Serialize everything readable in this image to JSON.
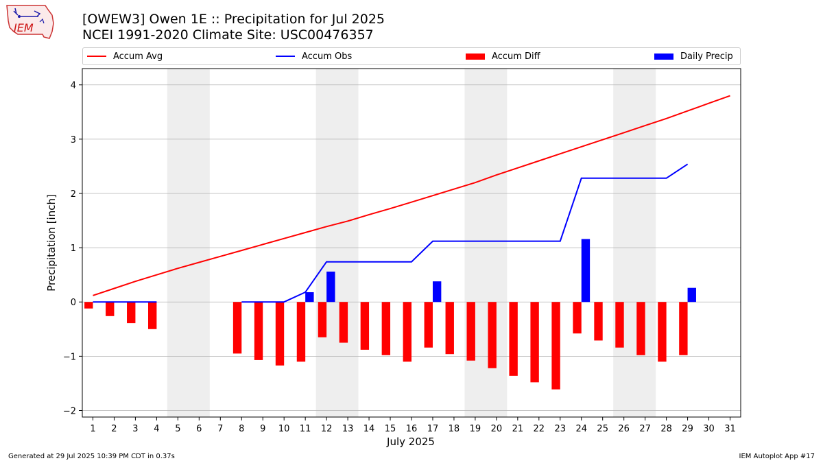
{
  "header": {
    "title": "[OWEW3] Owen 1E :: Precipitation for Jul 2025",
    "subtitle": "NCEI 1991-2020 Climate Site: USC00476357",
    "logo_text": "IEM"
  },
  "legend": {
    "accum_avg": "Accum Avg",
    "accum_obs": "Accum Obs",
    "accum_diff": "Accum Diff",
    "daily_precip": "Daily Precip",
    "placement": "top"
  },
  "footer": {
    "generated": "Generated at 29 Jul 2025 10:39 PM CDT in 0.37s",
    "app": "IEM Autoplot App #17"
  },
  "colors": {
    "avg": "#ff0000",
    "obs": "#0000ff",
    "diff": "#ff0000",
    "daily": "#0000ff",
    "weekend": "#eeeeee",
    "grid": "#b0b0b0"
  },
  "chart_data": {
    "type": "bar",
    "xlabel": "July 2025",
    "ylabel": "Precipitation [inch]",
    "ylim": [
      -2.12,
      4.3
    ],
    "xlim": [
      0.5,
      31.5
    ],
    "grid": true,
    "days": [
      1,
      2,
      3,
      4,
      5,
      6,
      7,
      8,
      9,
      10,
      11,
      12,
      13,
      14,
      15,
      16,
      17,
      18,
      19,
      20,
      21,
      22,
      23,
      24,
      25,
      26,
      27,
      28,
      29,
      30,
      31
    ],
    "y_ticks": [
      -2,
      -1,
      0,
      1,
      2,
      3,
      4
    ],
    "weekend_days": [
      [
        5,
        6
      ],
      [
        12,
        13
      ],
      [
        19,
        20
      ],
      [
        26,
        27
      ]
    ],
    "accum_avg": [
      0.12,
      0.25,
      0.38,
      0.5,
      0.62,
      0.73,
      0.84,
      0.95,
      1.06,
      1.17,
      1.28,
      1.39,
      1.49,
      1.61,
      1.72,
      1.84,
      1.96,
      2.08,
      2.2,
      2.34,
      2.47,
      2.6,
      2.73,
      2.86,
      2.99,
      3.12,
      3.25,
      3.38,
      3.52,
      3.66,
      3.8
    ],
    "accum_obs": [
      0.0,
      0.0,
      0.0,
      0.0,
      null,
      null,
      null,
      0.0,
      0.0,
      0.0,
      0.18,
      0.74,
      0.74,
      0.74,
      0.74,
      0.74,
      1.12,
      1.12,
      1.12,
      1.12,
      1.12,
      1.12,
      1.12,
      2.28,
      2.28,
      2.28,
      2.28,
      2.28,
      2.54,
      null,
      null
    ],
    "accum_diff": [
      -0.12,
      -0.26,
      -0.39,
      -0.5,
      null,
      null,
      null,
      -0.95,
      -1.07,
      -1.17,
      -1.1,
      -0.65,
      -0.75,
      -0.88,
      -0.98,
      -1.1,
      -0.84,
      -0.96,
      -1.08,
      -1.22,
      -1.36,
      -1.48,
      -1.61,
      -0.58,
      -0.71,
      -0.84,
      -0.98,
      -1.1,
      -0.98,
      null,
      null
    ],
    "daily_precip": [
      0,
      0,
      0,
      0,
      null,
      null,
      null,
      0,
      0,
      0,
      0.18,
      0.56,
      0,
      0,
      0,
      0,
      0.38,
      0,
      0,
      0,
      0,
      0,
      0,
      1.16,
      0,
      0,
      0,
      0,
      0.26,
      null,
      null
    ]
  }
}
